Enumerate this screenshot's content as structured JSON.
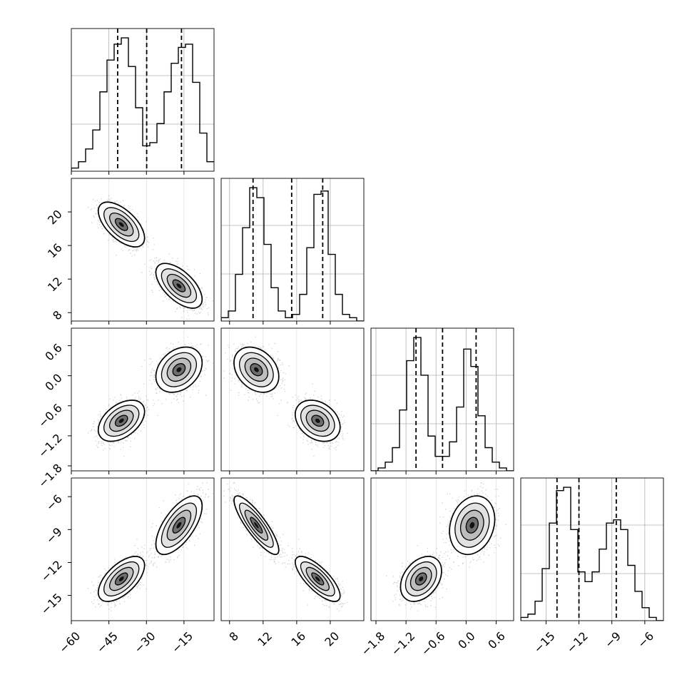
{
  "chart_data": {
    "type": "corner",
    "description_free": true,
    "grid": true,
    "n_params": 4,
    "quantile_lines": [
      [
        -41.5,
        -29.9,
        -16.0
      ],
      [
        10.8,
        15.4,
        19.1
      ],
      [
        -1.0,
        -0.47,
        0.2
      ],
      [
        -14.0,
        -12.0,
        -8.6
      ]
    ],
    "ranges": [
      [
        -60,
        -3
      ],
      [
        7,
        24
      ],
      [
        -1.9,
        0.95
      ],
      [
        -17.3,
        -4.3
      ]
    ],
    "tick_labels": [
      [
        "−60",
        "−45",
        "−30",
        "−15"
      ],
      [
        "8",
        "12",
        "16",
        "20"
      ],
      [
        "−1.8",
        "−1.2",
        "−0.6",
        "0.0",
        "0.6"
      ],
      [
        "−15",
        "−12",
        "−9",
        "−6"
      ]
    ],
    "tick_values": [
      [
        -60,
        -45,
        -30,
        -15
      ],
      [
        8,
        12,
        16,
        20
      ],
      [
        -1.8,
        -1.2,
        -0.6,
        0.0,
        0.6
      ],
      [
        -15,
        -12,
        -9,
        -6
      ]
    ],
    "histograms": [
      {
        "bins": [
          -60,
          -57.15,
          -54.3,
          -51.45,
          -48.6,
          -45.75,
          -42.9,
          -40.05,
          -37.2,
          -34.35,
          -31.5,
          -28.65,
          -25.8,
          -22.95,
          -20.1,
          -17.25,
          -14.4,
          -11.55,
          -8.7,
          -5.85,
          -3
        ],
        "counts": [
          1,
          3,
          7,
          13,
          25,
          35,
          40,
          42,
          33,
          20,
          8,
          9,
          15,
          25,
          34,
          39,
          40,
          28,
          12,
          3
        ]
      },
      {
        "bins": [
          7,
          7.85,
          8.7,
          9.55,
          10.4,
          11.25,
          12.1,
          12.95,
          13.8,
          14.65,
          15.5,
          16.35,
          17.2,
          18.05,
          18.9,
          19.75,
          20.6,
          21.45,
          22.3,
          23.15,
          24
        ],
        "counts": [
          1,
          3,
          14,
          28,
          40,
          37,
          23,
          10,
          3,
          1,
          2,
          8,
          22,
          38,
          39,
          20,
          8,
          2,
          1,
          0
        ]
      },
      {
        "bins": [
          -1.9,
          -1.7575,
          -1.615,
          -1.4725,
          -1.33,
          -1.1875,
          -1.045,
          -0.9025,
          -0.76,
          -0.6175,
          -0.475,
          -0.3325,
          -0.19,
          -0.0475,
          0.095,
          0.2375,
          0.38,
          0.5225,
          0.665,
          0.8075,
          0.95
        ],
        "counts": [
          0,
          1,
          3,
          8,
          21,
          38,
          46,
          33,
          12,
          5,
          5,
          10,
          22,
          42,
          36,
          19,
          8,
          3,
          1,
          0
        ]
      },
      {
        "bins": [
          -17.3,
          -16.65,
          -16.0,
          -15.35,
          -14.7,
          -14.05,
          -13.4,
          -12.75,
          -12.1,
          -11.45,
          -10.8,
          -10.15,
          -9.5,
          -8.85,
          -8.2,
          -7.55,
          -6.9,
          -6.25,
          -5.6,
          -4.95,
          -4.3
        ],
        "counts": [
          1,
          2,
          6,
          16,
          30,
          40,
          41,
          28,
          15,
          12,
          15,
          22,
          30,
          31,
          28,
          17,
          9,
          4,
          1,
          0
        ]
      }
    ],
    "modes": [
      {
        "means": [
          -40,
          18.5,
          -0.9,
          -13.5
        ],
        "sds": [
          4.5,
          1.3,
          0.2,
          1.0
        ],
        "corr": [
          [
            1,
            -0.6,
            0.45,
            0.6
          ],
          [
            -0.6,
            1,
            -0.3,
            -0.75
          ],
          [
            0.45,
            -0.3,
            1,
            0.35
          ],
          [
            0.6,
            -0.75,
            0.35,
            1
          ]
        ]
      },
      {
        "means": [
          -17,
          11.2,
          0.12,
          -8.6
        ],
        "sds": [
          4.5,
          1.3,
          0.22,
          1.3
        ],
        "corr": [
          [
            1,
            -0.6,
            0.3,
            0.65
          ],
          [
            -0.6,
            1,
            -0.3,
            -0.85
          ],
          [
            0.3,
            -0.3,
            1,
            0.2
          ],
          [
            0.65,
            -0.85,
            0.2,
            1
          ]
        ]
      }
    ]
  }
}
